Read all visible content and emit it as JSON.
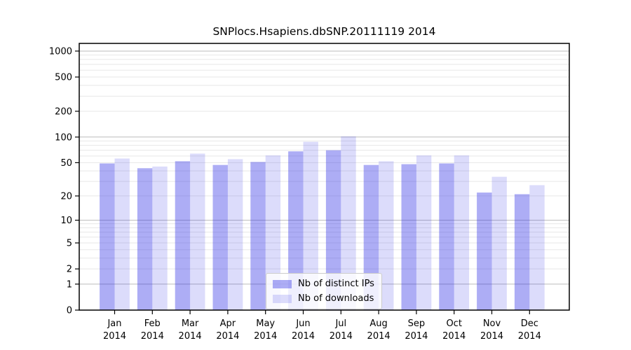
{
  "figure": {
    "background": "#ffffff"
  },
  "chart_data": {
    "type": "bar",
    "title": "SNPlocs.Hsapiens.dbSNP.20111119 2014",
    "categories": [
      "Jan",
      "Feb",
      "Mar",
      "Apr",
      "May",
      "Jun",
      "Jul",
      "Aug",
      "Sep",
      "Oct",
      "Nov",
      "Dec"
    ],
    "year_label": "2014",
    "series": [
      {
        "name": "Nb of distinct IPs",
        "color": "rgba(40,40,230,0.38)",
        "values": [
          49,
          43,
          52,
          47,
          51,
          68,
          70,
          47,
          48,
          49,
          22,
          21
        ]
      },
      {
        "name": "Nb of downloads",
        "color": "rgba(40,40,230,0.16)",
        "values": [
          56,
          45,
          64,
          55,
          61,
          88,
          102,
          52,
          61,
          61,
          34,
          27
        ]
      }
    ],
    "xlabel": "",
    "ylabel": "",
    "yscale": "log1p",
    "ylim": [
      0,
      1230
    ],
    "yticks": [
      0,
      1,
      2,
      5,
      10,
      20,
      50,
      100,
      200,
      500,
      1000
    ],
    "grid": true,
    "grid_major_values": [
      1,
      10,
      100,
      1000
    ],
    "grid_major_color": "#bbbbbb",
    "grid_minor_color": "#e7e7e7",
    "legend_position": "lower center"
  }
}
